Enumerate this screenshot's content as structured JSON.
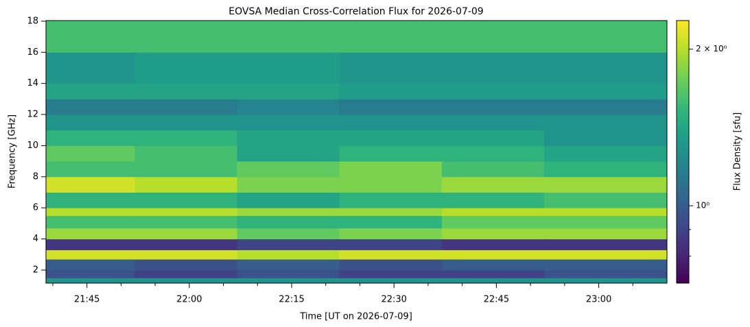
{
  "chart_data": {
    "type": "heatmap",
    "title": "EOVSA Median Cross-Correlation Flux for 2026-07-09",
    "x_label": "Time [UT on 2026-07-09]",
    "y_label": "Frequency [GHz]",
    "colorbar_label": "Flux Density [sfu]",
    "x": [
      "21:39",
      "21:52",
      "22:07",
      "22:22",
      "22:37",
      "22:52",
      "23:10"
    ],
    "y": [
      1.16,
      1.5,
      2,
      2.7,
      3.3,
      4,
      4.7,
      5.5,
      6,
      7,
      8,
      9,
      10,
      11,
      12,
      13,
      14,
      16,
      18.04
    ],
    "z": [
      [
        1.3,
        1.3,
        1.3,
        1.3,
        1.3,
        1.3
      ],
      [
        0.95,
        0.9,
        0.95,
        0.9,
        0.9,
        0.95
      ],
      [
        1.0,
        0.95,
        1.0,
        0.95,
        1.0,
        1.0
      ],
      [
        2.1,
        2.1,
        2.0,
        2.1,
        2.1,
        2.1
      ],
      [
        0.85,
        0.85,
        0.9,
        0.9,
        0.85,
        0.85
      ],
      [
        1.9,
        1.9,
        1.7,
        1.8,
        1.9,
        1.9
      ],
      [
        1.6,
        1.6,
        1.5,
        1.5,
        1.7,
        1.7
      ],
      [
        2.0,
        2.0,
        1.9,
        1.9,
        2.0,
        2.0
      ],
      [
        1.5,
        1.5,
        1.4,
        1.5,
        1.5,
        1.6
      ],
      [
        2.1,
        2.0,
        1.8,
        1.8,
        1.9,
        1.9
      ],
      [
        1.6,
        1.6,
        1.7,
        1.8,
        1.6,
        1.5
      ],
      [
        1.7,
        1.6,
        1.4,
        1.5,
        1.5,
        1.4
      ],
      [
        1.5,
        1.5,
        1.4,
        1.4,
        1.4,
        1.3
      ],
      [
        1.3,
        1.3,
        1.3,
        1.3,
        1.3,
        1.3
      ],
      [
        1.15,
        1.15,
        1.2,
        1.15,
        1.15,
        1.15
      ],
      [
        1.4,
        1.4,
        1.4,
        1.35,
        1.35,
        1.35
      ],
      [
        1.3,
        1.35,
        1.35,
        1.3,
        1.3,
        1.3
      ],
      [
        1.6,
        1.6,
        1.6,
        1.6,
        1.6,
        1.6
      ]
    ],
    "xlim": [
      "21:39",
      "23:10"
    ],
    "xticks": [
      "21:45",
      "22:00",
      "22:15",
      "22:30",
      "22:45",
      "23:00"
    ],
    "xminorticks": [
      "21:40",
      "21:50",
      "21:55",
      "22:05",
      "22:10",
      "22:20",
      "22:25",
      "22:35",
      "22:40",
      "22:50",
      "22:55",
      "23:05"
    ],
    "ylim": [
      1.16,
      18.04
    ],
    "yticks": [
      2,
      4,
      6,
      8,
      10,
      12,
      14,
      16,
      18
    ],
    "clim": [
      0.71,
      2.27
    ],
    "color_scale": "log",
    "cticks": [
      {
        "value": 1,
        "label": "10⁰"
      },
      {
        "value": 2,
        "label": "2 × 10⁰"
      }
    ],
    "cminorticks": [
      0.8,
      0.9
    ],
    "colormap": [
      "#440154",
      "#482878",
      "#3e4989",
      "#31688e",
      "#26828e",
      "#1f9e89",
      "#35b779",
      "#6ece58",
      "#b5de2b",
      "#fde725"
    ]
  }
}
